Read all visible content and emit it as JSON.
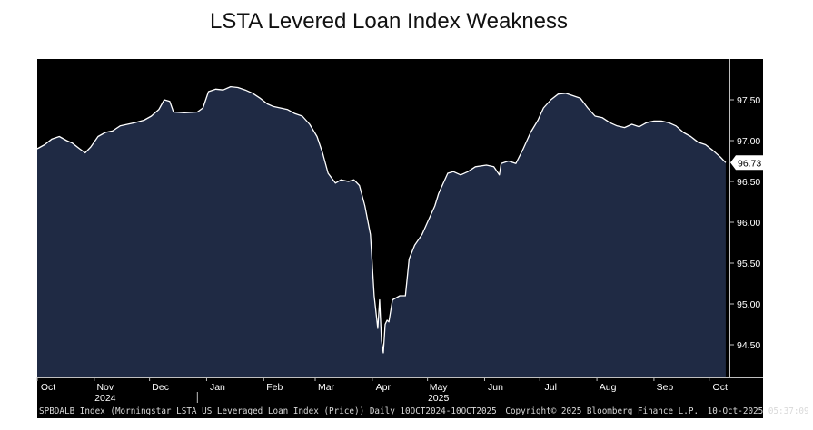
{
  "chart_data": {
    "type": "area",
    "title": "LSTA Levered Loan Index Weakness",
    "xlabel": "",
    "ylabel": "",
    "x_ticks": [
      "Oct",
      "Nov",
      "Dec",
      "Jan",
      "Feb",
      "Mar",
      "Apr",
      "May",
      "Jun",
      "Jul",
      "Aug",
      "Sep",
      "Oct"
    ],
    "x_tick_dates": [
      "2024-10-01",
      "2024-11-01",
      "2024-12-01",
      "2025-01-01",
      "2025-02-01",
      "2025-03-01",
      "2025-04-01",
      "2025-05-01",
      "2025-06-01",
      "2025-07-01",
      "2025-08-01",
      "2025-09-01",
      "2025-10-01"
    ],
    "year_labels": [
      {
        "label": "2024",
        "date": "2024-11-01"
      },
      {
        "label": "2025",
        "date": "2025-05-01"
      }
    ],
    "year_divider_date": "2024-12-27",
    "y_ticks": [
      94.5,
      95.0,
      95.5,
      96.0,
      96.5,
      97.0,
      97.5
    ],
    "y_tick_labels": [
      "94.50",
      "95.00",
      "95.50",
      "96.00",
      "96.50",
      "97.00",
      "97.50"
    ],
    "ylim": [
      94.1,
      98.0
    ],
    "xlim": [
      "2024-10-01",
      "2025-10-12"
    ],
    "last_value": 96.73,
    "last_value_label": "96.73",
    "grid": false,
    "colors": {
      "background": "#000000",
      "fill": "#1f2a44",
      "line": "#ffffff",
      "axis": "#bfbfbf"
    },
    "series": [
      {
        "points": [
          [
            "2024-10-01",
            96.9
          ],
          [
            "2024-10-05",
            96.95
          ],
          [
            "2024-10-09",
            97.02
          ],
          [
            "2024-10-13",
            97.05
          ],
          [
            "2024-10-17",
            97.0
          ],
          [
            "2024-10-20",
            96.97
          ],
          [
            "2024-10-24",
            96.9
          ],
          [
            "2024-10-27",
            96.85
          ],
          [
            "2024-10-30",
            96.92
          ],
          [
            "2024-11-03",
            97.05
          ],
          [
            "2024-11-07",
            97.1
          ],
          [
            "2024-11-11",
            97.12
          ],
          [
            "2024-11-15",
            97.18
          ],
          [
            "2024-11-19",
            97.2
          ],
          [
            "2024-11-23",
            97.22
          ],
          [
            "2024-11-28",
            97.25
          ],
          [
            "2024-12-02",
            97.3
          ],
          [
            "2024-12-06",
            97.38
          ],
          [
            "2024-12-09",
            97.5
          ],
          [
            "2024-12-12",
            97.48
          ],
          [
            "2024-12-14",
            97.35
          ],
          [
            "2024-12-20",
            97.34
          ],
          [
            "2024-12-27",
            97.35
          ],
          [
            "2024-12-30",
            97.4
          ],
          [
            "2025-01-02",
            97.6
          ],
          [
            "2025-01-06",
            97.63
          ],
          [
            "2025-01-10",
            97.62
          ],
          [
            "2025-01-14",
            97.66
          ],
          [
            "2025-01-18",
            97.65
          ],
          [
            "2025-01-22",
            97.62
          ],
          [
            "2025-01-26",
            97.58
          ],
          [
            "2025-01-30",
            97.52
          ],
          [
            "2025-02-03",
            97.45
          ],
          [
            "2025-02-06",
            97.42
          ],
          [
            "2025-02-10",
            97.4
          ],
          [
            "2025-02-14",
            97.38
          ],
          [
            "2025-02-18",
            97.33
          ],
          [
            "2025-02-22",
            97.3
          ],
          [
            "2025-02-26",
            97.2
          ],
          [
            "2025-03-02",
            97.05
          ],
          [
            "2025-03-05",
            96.85
          ],
          [
            "2025-03-08",
            96.6
          ],
          [
            "2025-03-12",
            96.48
          ],
          [
            "2025-03-15",
            96.52
          ],
          [
            "2025-03-19",
            96.5
          ],
          [
            "2025-03-22",
            96.52
          ],
          [
            "2025-03-25",
            96.45
          ],
          [
            "2025-03-28",
            96.2
          ],
          [
            "2025-03-31",
            95.85
          ],
          [
            "2025-04-02",
            95.1
          ],
          [
            "2025-04-04",
            94.7
          ],
          [
            "2025-04-05",
            95.05
          ],
          [
            "2025-04-06",
            94.55
          ],
          [
            "2025-04-07",
            94.4
          ],
          [
            "2025-04-08",
            94.75
          ],
          [
            "2025-04-09",
            94.8
          ],
          [
            "2025-04-10",
            94.78
          ],
          [
            "2025-04-12",
            95.05
          ],
          [
            "2025-04-16",
            95.1
          ],
          [
            "2025-04-19",
            95.1
          ],
          [
            "2025-04-21",
            95.55
          ],
          [
            "2025-04-24",
            95.72
          ],
          [
            "2025-04-28",
            95.85
          ],
          [
            "2025-05-01",
            96.0
          ],
          [
            "2025-05-05",
            96.2
          ],
          [
            "2025-05-07",
            96.35
          ],
          [
            "2025-05-12",
            96.6
          ],
          [
            "2025-05-15",
            96.62
          ],
          [
            "2025-05-19",
            96.58
          ],
          [
            "2025-05-23",
            96.62
          ],
          [
            "2025-05-27",
            96.68
          ],
          [
            "2025-06-02",
            96.7
          ],
          [
            "2025-06-06",
            96.68
          ],
          [
            "2025-06-09",
            96.58
          ],
          [
            "2025-06-10",
            96.72
          ],
          [
            "2025-06-14",
            96.75
          ],
          [
            "2025-06-18",
            96.72
          ],
          [
            "2025-06-22",
            96.9
          ],
          [
            "2025-06-26",
            97.1
          ],
          [
            "2025-06-30",
            97.25
          ],
          [
            "2025-07-03",
            97.4
          ],
          [
            "2025-07-07",
            97.5
          ],
          [
            "2025-07-11",
            97.57
          ],
          [
            "2025-07-15",
            97.58
          ],
          [
            "2025-07-19",
            97.55
          ],
          [
            "2025-07-23",
            97.52
          ],
          [
            "2025-07-27",
            97.4
          ],
          [
            "2025-07-31",
            97.3
          ],
          [
            "2025-08-04",
            97.28
          ],
          [
            "2025-08-08",
            97.22
          ],
          [
            "2025-08-12",
            97.18
          ],
          [
            "2025-08-16",
            97.16
          ],
          [
            "2025-08-20",
            97.2
          ],
          [
            "2025-08-24",
            97.17
          ],
          [
            "2025-08-28",
            97.22
          ],
          [
            "2025-09-01",
            97.24
          ],
          [
            "2025-09-05",
            97.24
          ],
          [
            "2025-09-09",
            97.22
          ],
          [
            "2025-09-13",
            97.18
          ],
          [
            "2025-09-17",
            97.1
          ],
          [
            "2025-09-21",
            97.05
          ],
          [
            "2025-09-25",
            96.98
          ],
          [
            "2025-09-29",
            96.95
          ],
          [
            "2025-10-03",
            96.88
          ],
          [
            "2025-10-07",
            96.8
          ],
          [
            "2025-10-10",
            96.73
          ]
        ]
      }
    ]
  },
  "footer": {
    "index": "SPBDALB Index (Morningstar LSTA US Leveraged Loan Index (Price)) Daily 10OCT2024-10OCT2025",
    "copyright": "Copyright© 2025 Bloomberg Finance L.P.",
    "timestamp": "10-Oct-2025 05:37:09"
  }
}
